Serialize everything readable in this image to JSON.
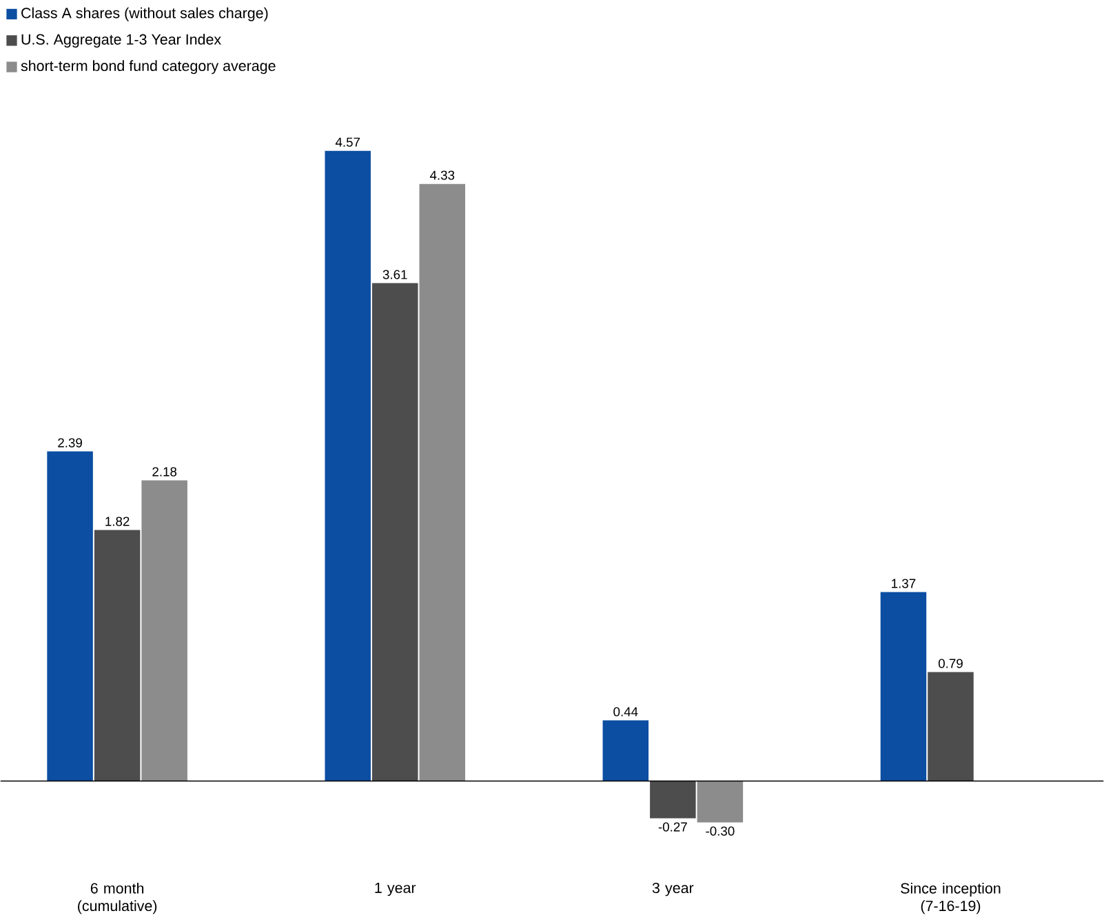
{
  "chart_data": {
    "type": "bar",
    "categories": [
      "6 month (cumulative)",
      "1 year",
      "3 year",
      "Since inception (7-16-19)"
    ],
    "series": [
      {
        "name": "Class A shares (without sales charge)",
        "color": "#0b4ea2",
        "values": [
          2.39,
          4.57,
          0.44,
          1.37
        ],
        "value_labels": [
          "2.39",
          "4.57",
          "0.44",
          "1.37"
        ]
      },
      {
        "name": "U.S. Aggregate 1-3 Year Index",
        "color": "#4d4d4d",
        "values": [
          1.82,
          3.61,
          -0.27,
          0.79
        ],
        "value_labels": [
          "1.82",
          "3.61",
          "-0.27",
          "0.79"
        ]
      },
      {
        "name": "short-term bond fund category average",
        "color": "#8c8c8c",
        "values": [
          2.18,
          4.33,
          -0.3,
          null
        ],
        "value_labels": [
          "2.18",
          "4.33",
          "-0.30",
          null
        ]
      }
    ],
    "legend": "top left"
  }
}
